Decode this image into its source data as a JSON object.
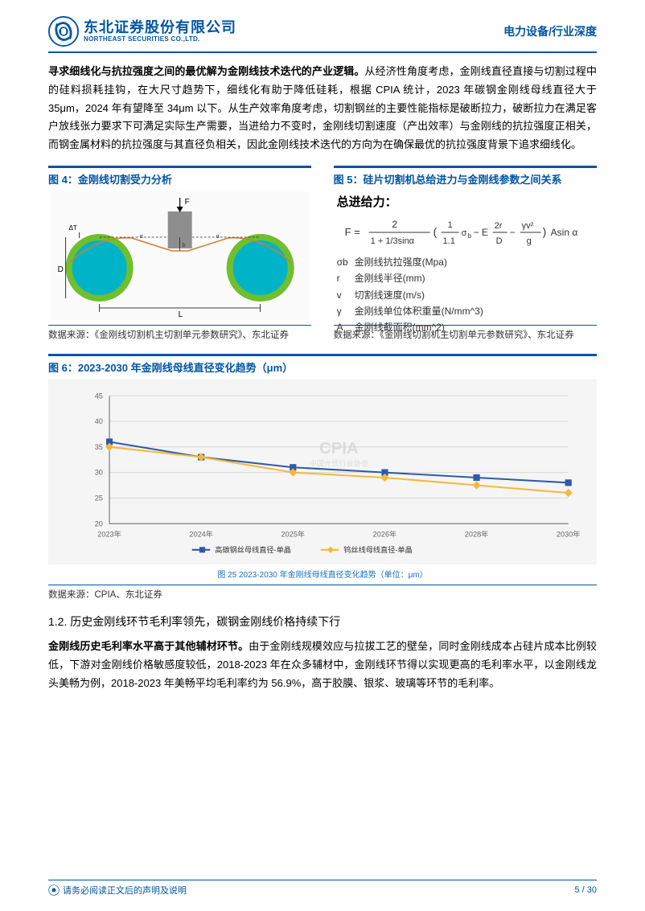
{
  "header": {
    "logo_cn": "东北证券股份有限公司",
    "logo_en": "NORTHEAST SECURITIES CO.,LTD.",
    "right": "电力设备/行业深度"
  },
  "para1": {
    "bold": "寻求细线化与抗拉强度之间的最优解为金刚线技术迭代的产业逻辑。",
    "rest": "从经济性角度考虑，金刚线直径直接与切割过程中的硅料损耗挂钩，在大尺寸趋势下，细线化有助于降低硅耗，根据 CPIA 统计，2023 年碳钢金刚线母线直径大于 35μm，2024 年有望降至 34μm 以下。从生产效率角度考虑，切割钢丝的主要性能指标是破断拉力，破断拉力在满足客户放线张力要求下可满足实际生产需要，当进给力不变时，金刚线切割速度（产出效率）与金刚线的抗拉强度正相关，而钢金属材料的抗拉强度与其直径负相关，因此金刚线技术迭代的方向为在确保最优的抗拉强度背景下追求细线化。"
  },
  "fig4": {
    "title": "图 4：金刚线切割受力分析",
    "src": "数据来源：《金刚线切割机主切割单元参数研究》、东北证券",
    "labels": {
      "F": "F",
      "L": "L",
      "D": "D",
      "dT": "ΔT"
    },
    "colors": {
      "circle_fill": "#00b3c7",
      "circle_stroke": "#6fbf2e",
      "block": "#8e8e8e",
      "line": "#d67b2f"
    }
  },
  "fig5": {
    "title": "图 5：硅片切割机总给进力与金刚线参数之间关系",
    "heading": "总进给力：",
    "formula_text": "F = (2 / (1 + 1/3 sinα)) · (1/1.1 · σ_b − E · 2r/D − γv²/g) · A sinα",
    "params": [
      {
        "sym": "σb",
        "desc": "金刚线抗拉强度(Mpa)"
      },
      {
        "sym": "r",
        "desc": "金刚线半径(mm)"
      },
      {
        "sym": "v",
        "desc": "切割线速度(m/s)"
      },
      {
        "sym": "γ",
        "desc": "金刚线单位体积重量(N/mm^3)"
      },
      {
        "sym": "A",
        "desc": "金刚线截面积(mm^2)"
      }
    ],
    "src": "数据来源：《金刚线切割机主切割单元参数研究》、东北证券"
  },
  "fig6": {
    "title": "图 6：2023-2030 年金刚线母线直径变化趋势（μm）",
    "caption": "图 25  2023-2030 年金刚线母线直径变化趋势（单位：μm）",
    "src": "数据来源：CPIA、东北证券",
    "ylim": [
      20,
      45
    ],
    "ytick_step": 5,
    "categories": [
      "2023年",
      "2024年",
      "2025年",
      "2026年",
      "2028年",
      "2030年"
    ],
    "series": [
      {
        "name": "高碳钢丝母线直径-单晶",
        "color": "#2f5aa8",
        "marker": "square",
        "values": [
          36,
          33,
          31,
          30,
          29,
          28
        ]
      },
      {
        "name": "钨丝线母线直径-单晶",
        "color": "#f5b93a",
        "marker": "diamond",
        "values": [
          35,
          33,
          30,
          29,
          27.5,
          26
        ]
      }
    ],
    "background_color": "#f5f5f5",
    "grid_color": "#d9d9d9",
    "axis_color": "#666666",
    "tick_fontsize": 9,
    "legend_fontsize": 9,
    "watermark": "CPIA"
  },
  "section12": "1.2.  历史金刚线环节毛利率领先，碳钢金刚线价格持续下行",
  "para2": {
    "bold": "金刚线历史毛利率水平高于其他辅材环节。",
    "rest": "由于金刚线规模效应与拉拔工艺的壁垒，同时金刚线成本占硅片成本比例较低，下游对金刚线价格敏感度较低，2018-2023 年在众多辅材中，金刚线环节得以实现更高的毛利率水平，以金刚线龙头美畅为例，2018-2023 年美畅平均毛利率约为 56.9%，高于胶膜、银浆、玻璃等环节的毛利率。"
  },
  "footer": {
    "note": "请务必阅读正文后的声明及说明",
    "page": "5 / 30"
  }
}
